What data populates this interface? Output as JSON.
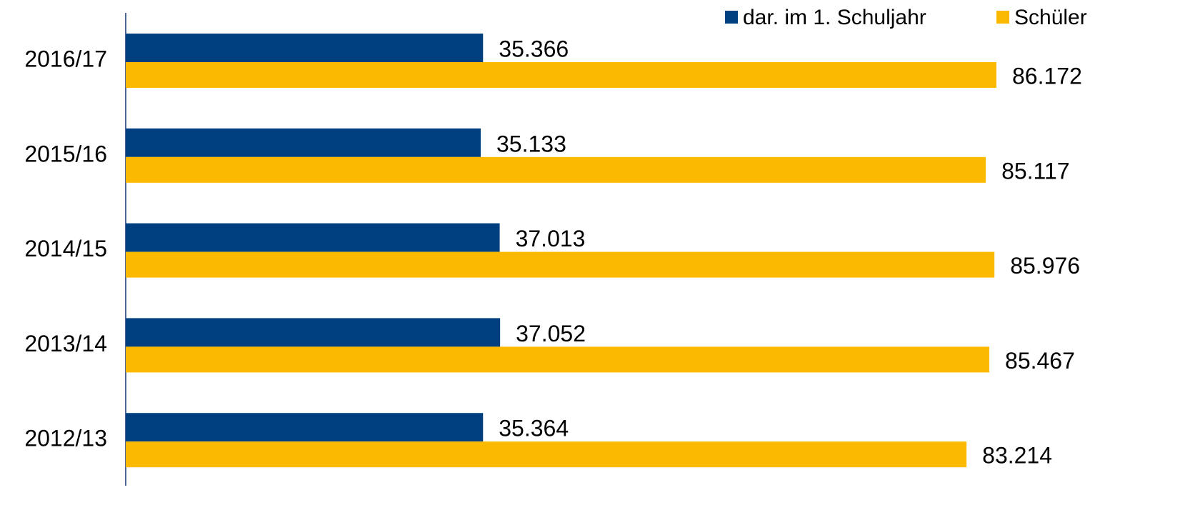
{
  "chart_data": {
    "type": "bar",
    "orientation": "horizontal",
    "categories": [
      "2016/17",
      "2015/16",
      "2014/15",
      "2013/14",
      "2012/13"
    ],
    "series": [
      {
        "name": "dar. im 1. Schuljahr",
        "color": "#003f7f",
        "values": [
          35366,
          35133,
          37013,
          37052,
          35364
        ],
        "value_labels": [
          "35.366",
          "35.133",
          "37.013",
          "37.052",
          "35.364"
        ]
      },
      {
        "name": "Schüler",
        "color": "#fbb900",
        "values": [
          86172,
          85117,
          85976,
          85467,
          83214
        ],
        "value_labels": [
          "86.172",
          "85.117",
          "85.976",
          "85.467",
          "83.214"
        ]
      }
    ],
    "xlim": [
      0,
      100000
    ],
    "legend": "top-right"
  }
}
